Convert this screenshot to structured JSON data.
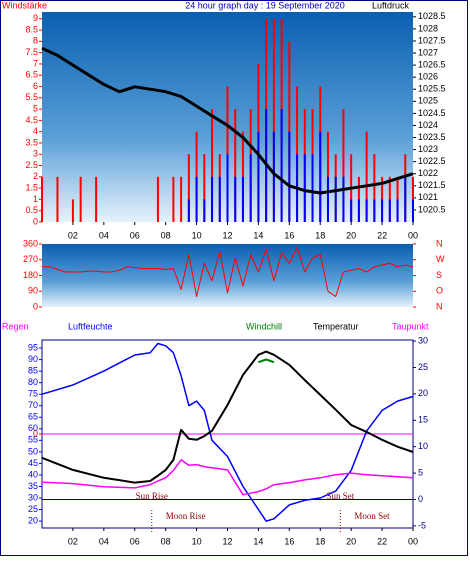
{
  "chart_data": [
    {
      "type": "combo",
      "title": "24 hour graph day : 19 September 2020",
      "y_label": "Windstärke",
      "y2_label": "Luftdruck",
      "x": [
        0,
        0.5,
        1,
        1.5,
        2,
        2.5,
        3,
        3.5,
        4,
        4.5,
        5,
        5.5,
        6,
        6.5,
        7,
        7.5,
        8,
        8.5,
        9,
        9.5,
        10,
        10.5,
        11,
        11.5,
        12,
        12.5,
        13,
        13.5,
        14,
        14.5,
        15,
        15.5,
        16,
        16.5,
        17,
        17.5,
        18,
        18.5,
        19,
        19.5,
        20,
        20.5,
        21,
        21.5,
        22,
        22.5,
        23,
        23.5,
        24
      ],
      "xlim": [
        0,
        24
      ],
      "xticks": [
        {
          "value": 2,
          "label": "02"
        },
        {
          "value": 4,
          "label": "04"
        },
        {
          "value": 6,
          "label": "06"
        },
        {
          "value": 8,
          "label": "08"
        },
        10,
        12,
        14,
        16,
        18,
        20,
        22,
        {
          "value": 24,
          "label": "00"
        }
      ],
      "ylim": [
        0,
        9.3
      ],
      "yticks": [
        0,
        0.5,
        1,
        1.5,
        2,
        2.5,
        3,
        3.5,
        4,
        4.5,
        5,
        5.5,
        6,
        6.5,
        7,
        7.5,
        8,
        8.5,
        9
      ],
      "y2lim": [
        1020,
        1028.7
      ],
      "y2ticks": [
        1020.5,
        1021,
        1021.5,
        1022,
        1022.5,
        1023,
        1023.5,
        1024,
        1024.5,
        1025,
        1025.5,
        1026,
        1026.5,
        1027,
        1027.5,
        1028,
        1028.5
      ],
      "series": [
        {
          "type": "bar",
          "color": "#ff0000",
          "values": [
            2,
            0,
            2,
            0,
            1,
            2,
            0,
            2,
            0,
            0,
            0,
            0,
            0,
            0,
            0,
            2,
            0,
            2,
            2,
            3,
            4,
            3,
            5,
            3,
            6,
            5,
            4,
            5,
            7,
            9,
            9,
            9,
            8,
            6,
            5,
            5,
            6,
            4,
            3,
            5,
            3,
            2,
            4,
            3,
            2,
            2,
            2,
            3,
            2
          ]
        },
        {
          "type": "bar",
          "color": "#0000ff",
          "values": [
            0,
            0,
            0,
            0,
            0,
            0,
            0,
            0,
            0,
            0,
            0,
            0,
            0,
            0,
            0,
            0,
            0,
            0,
            0,
            1,
            2,
            1,
            2,
            2,
            3,
            2,
            2,
            3,
            4,
            5,
            4,
            5,
            4,
            3,
            3,
            3,
            4,
            2,
            2,
            2,
            1,
            1,
            1,
            1,
            1,
            1,
            1,
            2,
            1
          ]
        },
        {
          "type": "line",
          "axis": "y2",
          "color": "#000000",
          "x": [
            0,
            1,
            2,
            3,
            4,
            5,
            6,
            7,
            8,
            9,
            10,
            11,
            12,
            13,
            14,
            15,
            16,
            17,
            18,
            19,
            20,
            21,
            22,
            23,
            24
          ],
          "values": [
            1027.2,
            1026.9,
            1026.5,
            1026.1,
            1025.7,
            1025.4,
            1025.6,
            1025.5,
            1025.4,
            1025.2,
            1024.8,
            1024.4,
            1024,
            1023.5,
            1022.8,
            1022,
            1021.5,
            1021.3,
            1021.2,
            1021.3,
            1021.4,
            1021.5,
            1021.6,
            1021.8,
            1022
          ]
        }
      ]
    },
    {
      "type": "line",
      "x": [
        0,
        0.5,
        1,
        1.5,
        2,
        2.5,
        3,
        3.5,
        4,
        4.5,
        5,
        5.5,
        6,
        6.5,
        7,
        7.5,
        8,
        8.5,
        9,
        9.5,
        10,
        10.5,
        11,
        11.5,
        12,
        12.5,
        13,
        13.5,
        14,
        14.5,
        15,
        15.5,
        16,
        16.5,
        17,
        17.5,
        18,
        18.5,
        19,
        19.5,
        20,
        20.5,
        21,
        21.5,
        22,
        22.5,
        23,
        23.5,
        24
      ],
      "xlim": [
        0,
        24
      ],
      "ylim": [
        0,
        360
      ],
      "yticks": [
        0,
        90,
        180,
        270,
        360
      ],
      "y2lim": [
        0,
        360
      ],
      "y2ticks": [
        {
          "value": 0,
          "label": "N"
        },
        {
          "value": 90,
          "label": "O"
        },
        {
          "value": 180,
          "label": "S"
        },
        {
          "value": 270,
          "label": "W"
        },
        {
          "value": 360,
          "label": "N"
        }
      ],
      "series": [
        {
          "color": "#ff0000",
          "values": [
            230,
            230,
            215,
            200,
            200,
            200,
            205,
            205,
            200,
            200,
            210,
            230,
            225,
            220,
            220,
            220,
            215,
            220,
            100,
            300,
            60,
            250,
            150,
            320,
            80,
            280,
            120,
            300,
            200,
            330,
            150,
            310,
            250,
            340,
            200,
            280,
            300,
            90,
            60,
            200,
            210,
            220,
            200,
            230,
            240,
            250,
            230,
            240,
            230
          ]
        }
      ]
    },
    {
      "type": "line",
      "x": [
        0,
        2,
        4,
        6,
        7,
        7.5,
        8,
        8.5,
        9,
        9.5,
        10,
        10.5,
        11,
        12,
        13,
        14,
        14.5,
        15,
        16,
        17,
        18,
        19,
        20,
        21,
        22,
        23,
        24
      ],
      "xlim": [
        0,
        24
      ],
      "xticks": [
        {
          "value": 2,
          "label": "02"
        },
        {
          "value": 4,
          "label": "04"
        },
        {
          "value": 6,
          "label": "06"
        },
        {
          "value": 8,
          "label": "08"
        },
        10,
        12,
        14,
        16,
        18,
        20,
        22,
        {
          "value": 24,
          "label": "00"
        }
      ],
      "ylim": [
        17,
        98.5
      ],
      "yticks": [
        20,
        25,
        30,
        35,
        40,
        45,
        50,
        55,
        60,
        65,
        70,
        75,
        80,
        85,
        90,
        95
      ],
      "y2lim": [
        -5.4,
        30.2
      ],
      "y2ticks": [
        -5,
        0,
        5,
        10,
        15,
        20,
        25,
        30
      ],
      "y3lim": [
        -1,
        1
      ],
      "y3ticks": [
        0
      ],
      "zero_line": true,
      "series": [
        {
          "name": "Regen",
          "axis": "y3",
          "color": "#ff00ff",
          "values": [
            0,
            0,
            0,
            0,
            0,
            0,
            0,
            0,
            0,
            0,
            0,
            0,
            0,
            0,
            0,
            0,
            0,
            0,
            0,
            0,
            0,
            0,
            0,
            0,
            0,
            0,
            0
          ]
        },
        {
          "name": "Luftfeuchte",
          "color": "#0000ff",
          "values": [
            75,
            79,
            85,
            92,
            93,
            97,
            96,
            93,
            83,
            70,
            72,
            68,
            55,
            48,
            35,
            25,
            20,
            21,
            27,
            29,
            30,
            33,
            42,
            59,
            68,
            72,
            74
          ]
        },
        {
          "name": "Windchill",
          "axis": "y2",
          "color": "#008000",
          "values": [
            null,
            null,
            null,
            null,
            null,
            null,
            null,
            null,
            null,
            null,
            null,
            null,
            null,
            null,
            null,
            26,
            26.5,
            26,
            null,
            null,
            null,
            null,
            null,
            null,
            null,
            null,
            null
          ]
        },
        {
          "name": "Temperatur",
          "axis": "y2",
          "color": "#000000",
          "values": [
            7.9,
            5.6,
            4.1,
            3.2,
            3.5,
            4.5,
            5.6,
            7.5,
            13.2,
            11.5,
            11.3,
            12,
            13,
            17.9,
            23.6,
            27.4,
            28,
            27.4,
            25.5,
            22.6,
            19.8,
            17,
            14.1,
            12.8,
            11.3,
            10,
            9
          ]
        },
        {
          "name": "Taupunkt",
          "axis": "y2",
          "color": "#ff00ff",
          "values": [
            3.3,
            3,
            2.4,
            2.2,
            2.8,
            3.5,
            4.1,
            5.5,
            7.5,
            6.5,
            6.6,
            6.2,
            6,
            5.6,
            0.9,
            1.5,
            2,
            2.8,
            3.2,
            3.7,
            4.1,
            4.7,
            5,
            4.7,
            4.5,
            4.3,
            4.1
          ]
        }
      ],
      "sun_events": [
        {
          "label": "Sun Rise",
          "x": 7.1
        },
        {
          "label": "Sun Set",
          "x": 19.3
        }
      ],
      "moon_events": [
        {
          "label": "Moon Rise",
          "x": 7.1
        },
        {
          "label": "Moon Set",
          "x": 19.3
        }
      ]
    }
  ]
}
